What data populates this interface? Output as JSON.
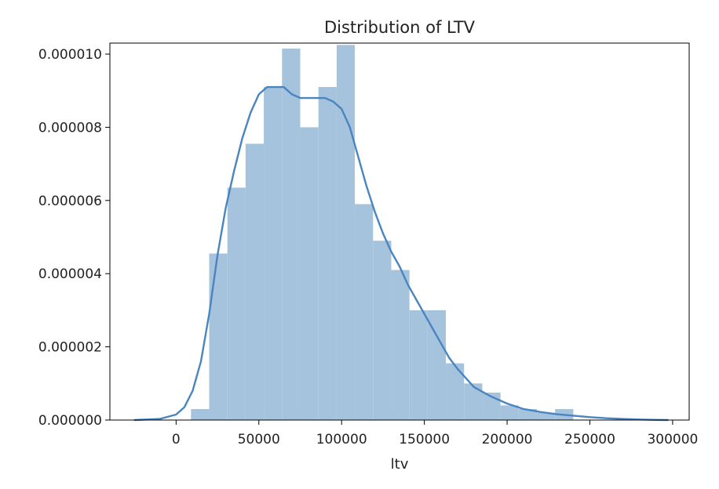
{
  "chart_data": {
    "type": "bar",
    "title": "Distribution of LTV",
    "xlabel": "ltv",
    "ylabel": "",
    "xlim": [
      -40000,
      310000
    ],
    "ylim": [
      0,
      1.03e-05
    ],
    "x_ticks": [
      0,
      50000,
      100000,
      150000,
      200000,
      250000,
      300000
    ],
    "x_tick_labels": [
      "0",
      "50000",
      "100000",
      "150000",
      "200000",
      "250000",
      "300000"
    ],
    "y_ticks": [
      0,
      2e-06,
      4e-06,
      6e-06,
      8e-06,
      1e-05
    ],
    "y_tick_labels": [
      "0.000000",
      "0.000002",
      "0.000004",
      "0.000006",
      "0.000008",
      "0.000010"
    ],
    "grid": false,
    "series": [
      {
        "type": "histogram",
        "bin_edges": [
          9000,
          20000,
          31000,
          42000,
          53000,
          64000,
          75000,
          86000,
          97000,
          108000,
          119000,
          130000,
          141000,
          152000,
          163000,
          174000,
          185000,
          196000,
          207000,
          218000,
          229000,
          240000
        ],
        "values": [
          3e-07,
          4.55e-06,
          6.35e-06,
          7.55e-06,
          9.1e-06,
          1.015e-05,
          8e-06,
          9.1e-06,
          1.025e-05,
          5.9e-06,
          4.9e-06,
          4.1e-06,
          3e-06,
          3e-06,
          1.55e-06,
          1e-06,
          7.5e-07,
          4e-07,
          3e-07,
          2e-07,
          3e-07
        ],
        "color": "#a6c3dd"
      },
      {
        "type": "kde",
        "color": "#4a85bf",
        "x": [
          -25000,
          -10000,
          0,
          5000,
          10000,
          15000,
          20000,
          25000,
          30000,
          35000,
          40000,
          45000,
          50000,
          55000,
          60000,
          65000,
          70000,
          75000,
          80000,
          85000,
          90000,
          95000,
          100000,
          105000,
          110000,
          115000,
          120000,
          125000,
          130000,
          135000,
          140000,
          145000,
          150000,
          155000,
          160000,
          165000,
          170000,
          180000,
          190000,
          200000,
          210000,
          220000,
          230000,
          240000,
          250000,
          260000,
          270000,
          280000,
          290000,
          297000
        ],
        "y": [
          0.0,
          3e-08,
          1.5e-07,
          3.5e-07,
          8e-07,
          1.6e-06,
          2.9e-06,
          4.5e-06,
          5.8e-06,
          6.8e-06,
          7.7e-06,
          8.4e-06,
          8.9e-06,
          9.1e-06,
          9.1e-06,
          9.1e-06,
          8.9e-06,
          8.8e-06,
          8.8e-06,
          8.8e-06,
          8.8e-06,
          8.7e-06,
          8.5e-06,
          8e-06,
          7.2e-06,
          6.4e-06,
          5.7e-06,
          5.1e-06,
          4.6e-06,
          4.2e-06,
          3.7e-06,
          3.3e-06,
          2.9e-06,
          2.5e-06,
          2.1e-06,
          1.7e-06,
          1.4e-06,
          9e-07,
          6.5e-07,
          4.5e-07,
          3e-07,
          2.2e-07,
          1.6e-07,
          1.2e-07,
          8e-08,
          5e-08,
          3e-08,
          1.5e-08,
          5e-09,
          0.0
        ]
      }
    ]
  }
}
